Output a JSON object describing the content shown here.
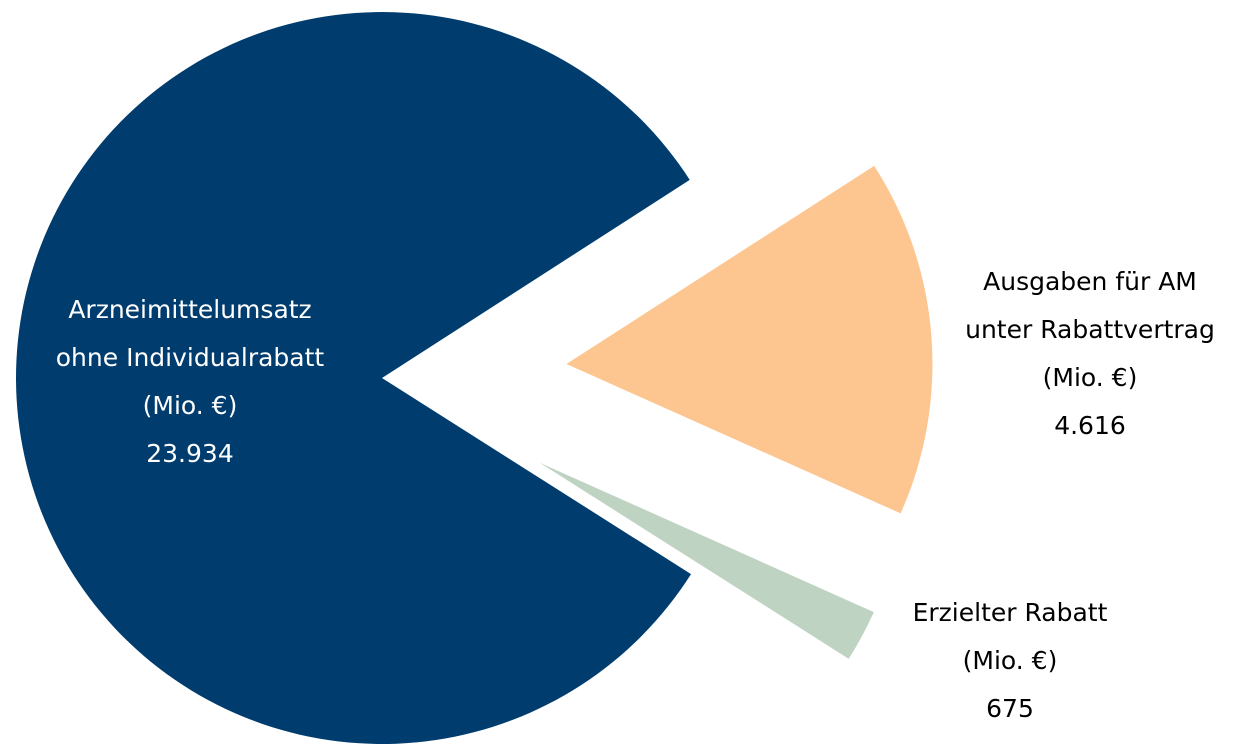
{
  "chart_data": {
    "type": "pie",
    "categories": [
      "Arzneimittelumsatz\nohne Individualrabatt\n(Mio. €)",
      "Ausgaben für AM\nunter Rabattvertrag\n(Mio. €)",
      "Erzielter Rabatt\n(Mio. €)"
    ],
    "values": [
      23934,
      4616,
      675
    ],
    "value_labels": [
      "23.934",
      "4.616",
      "675"
    ],
    "colors": [
      "#003d6e",
      "#fdc58f",
      "#bfd3c3"
    ]
  }
}
